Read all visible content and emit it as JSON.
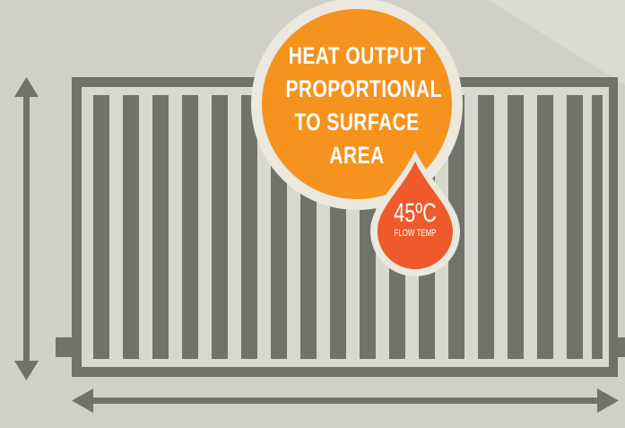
{
  "colors": {
    "background": "#d1d0c8",
    "radiator": "#70736a",
    "radiator_gap": "#d9d8cf",
    "bubble_ring": "#ebe8dd",
    "bubble": "#f6921e",
    "drop": "#ee5a2b"
  },
  "bubble": {
    "lines": [
      "HEAT OUTPUT",
      "PROPORTIONAL",
      "TO SURFACE",
      "AREA"
    ]
  },
  "drop": {
    "temperature": "45ºC",
    "label": "FLOW TEMP"
  },
  "icons": {
    "height_arrow": "vertical-double-arrow-icon",
    "width_arrow": "horizontal-double-arrow-icon",
    "drop": "water-drop-icon"
  }
}
